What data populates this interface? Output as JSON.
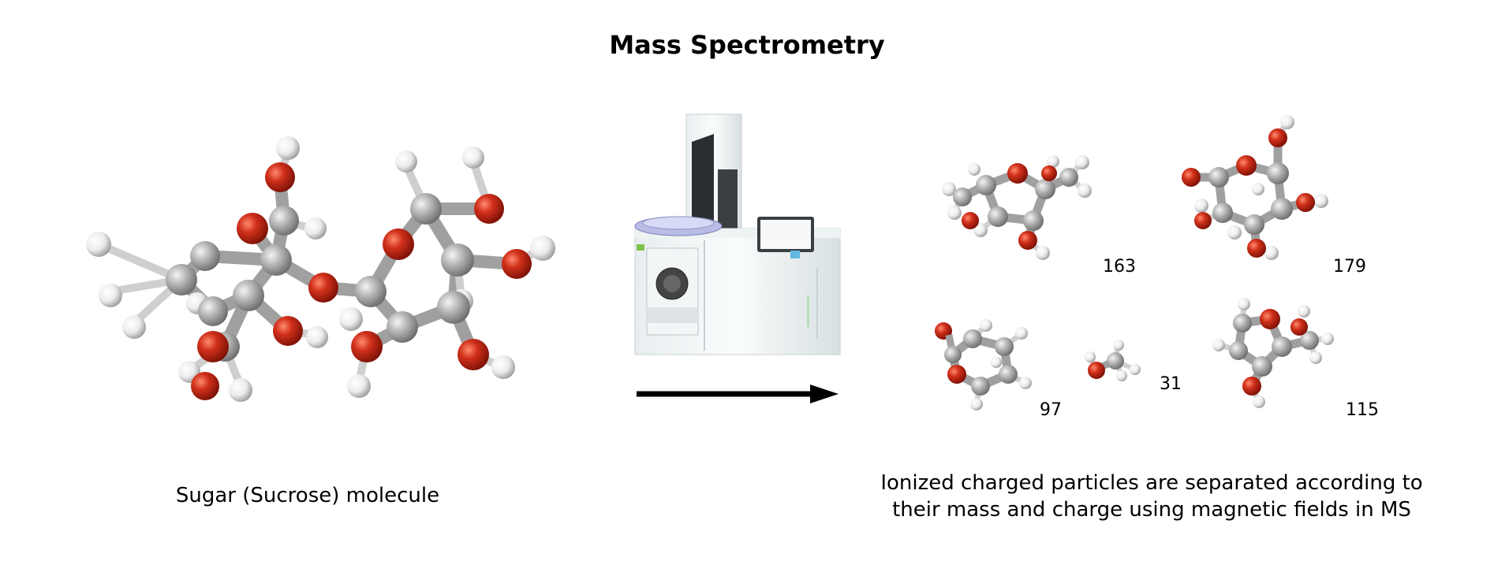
{
  "title": "Mass Spectrometry",
  "left_caption": "Sugar (Sucrose) molecule",
  "right_caption_line1": "Ionized charged particles are separated  according to",
  "right_caption_line2": "their mass and charge using magnetic fields in MS",
  "fragments": [
    {
      "id": "frag-163",
      "mass": "163"
    },
    {
      "id": "frag-179",
      "mass": "179"
    },
    {
      "id": "frag-97",
      "mass": "97"
    },
    {
      "id": "frag-31",
      "mass": "31"
    },
    {
      "id": "frag-115",
      "mass": "115"
    }
  ],
  "colors": {
    "carbon": "#a8a8a8",
    "oxygen": "#cc2a12",
    "hydrogen": "#f2f2f2",
    "arrow": "#000000"
  }
}
